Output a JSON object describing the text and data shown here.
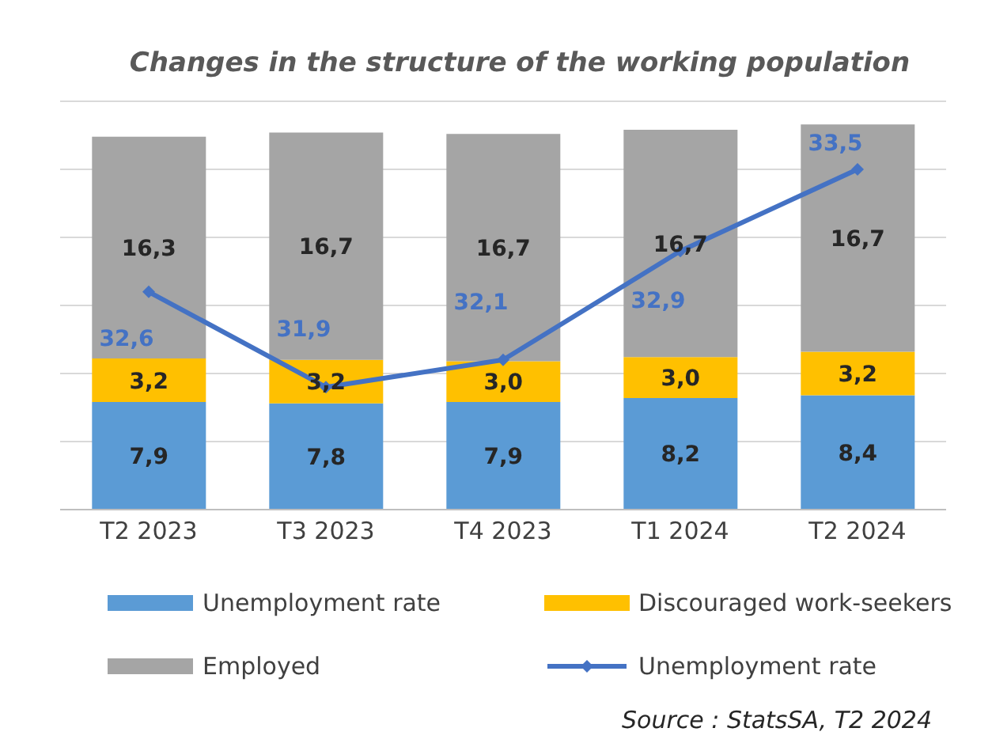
{
  "chart_data": {
    "type": "bar",
    "title": "Changes in the structure of the working population",
    "categories": [
      "T2 2023",
      "T3 2023",
      "T4 2023",
      "T1 2024",
      "T2 2024"
    ],
    "stacked": true,
    "grid": "y",
    "legend": "bottom",
    "marker": "diamond",
    "line_style": "solid",
    "ylim": [
      0,
      30
    ],
    "yticks": [
      {
        "value": 0,
        "label": null
      },
      {
        "value": 5,
        "label": null
      },
      {
        "value": 10,
        "label": null
      },
      {
        "value": 15,
        "label": null
      },
      {
        "value": 20,
        "label": null
      },
      {
        "value": 25,
        "label": null
      },
      {
        "value": 30,
        "label": null
      }
    ],
    "series": [
      {
        "name": "Unemployment rate",
        "color": "#5b9bd5",
        "values": [
          7.9,
          7.8,
          7.9,
          8.2,
          8.4
        ],
        "value_labels": [
          "7,9",
          "7,8",
          "7,9",
          "8,2",
          "8,4"
        ]
      },
      {
        "name": "Discouraged work-seekers",
        "color": "#ffc000",
        "values": [
          3.2,
          3.2,
          3.0,
          3.0,
          3.2
        ],
        "value_labels": [
          "3,2",
          "3,2",
          "3,0",
          "3,0",
          "3,2"
        ]
      },
      {
        "name": "Employed",
        "color": "#a5a5a5",
        "values": [
          16.3,
          16.7,
          16.7,
          16.7,
          16.7
        ],
        "value_labels": [
          "16,3",
          "16,7",
          "16,7",
          "16,7",
          "16,7"
        ]
      },
      {
        "name": "Unemployment rate",
        "type": "line",
        "axis": "y2",
        "color": "#4472c4",
        "values": [
          32.6,
          31.9,
          32.1,
          32.9,
          33.5
        ],
        "value_labels": [
          "32,6",
          "31,9",
          "32,1",
          "32,9",
          "33,5"
        ]
      }
    ],
    "annotations": [
      "Source : StatsSA, T2 2024"
    ]
  }
}
